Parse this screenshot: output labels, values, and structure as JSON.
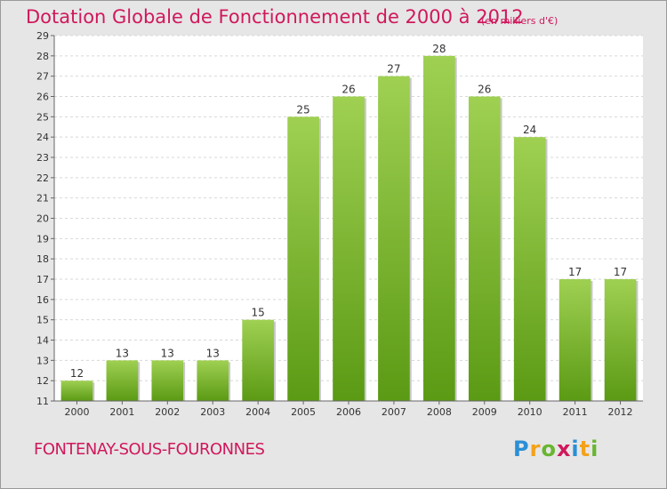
{
  "header": {
    "title": "Dotation Globale de Fonctionnement de 2000 à 2012",
    "unit": "(en milliers d'€)"
  },
  "footer": {
    "commune": "FONTENAY-SOUS-FOURONNES",
    "logo_letters": [
      "P",
      "r",
      "o",
      "x",
      "i",
      "t",
      "i"
    ]
  },
  "colors": {
    "title": "#d0185c",
    "bar_top": "#9fd052",
    "bar_bottom": "#5b9a14",
    "plot_bg": "#ffffff",
    "frame_bg": "#e6e6e6"
  },
  "chart_data": {
    "type": "bar",
    "title": "Dotation Globale de Fonctionnement de 2000 à 2012",
    "subtitle": "(en milliers d'€)",
    "xlabel": "",
    "ylabel": "",
    "categories": [
      "2000",
      "2001",
      "2002",
      "2003",
      "2004",
      "2005",
      "2006",
      "2007",
      "2008",
      "2009",
      "2010",
      "2011",
      "2012"
    ],
    "values": [
      12,
      13,
      13,
      13,
      15,
      25,
      26,
      27,
      28,
      26,
      24,
      17,
      17
    ],
    "ylim": [
      11,
      29
    ],
    "yticks": [
      11,
      12,
      13,
      14,
      15,
      16,
      17,
      18,
      19,
      20,
      21,
      22,
      23,
      24,
      25,
      26,
      27,
      28,
      29
    ],
    "grid": true,
    "legend": "none"
  }
}
